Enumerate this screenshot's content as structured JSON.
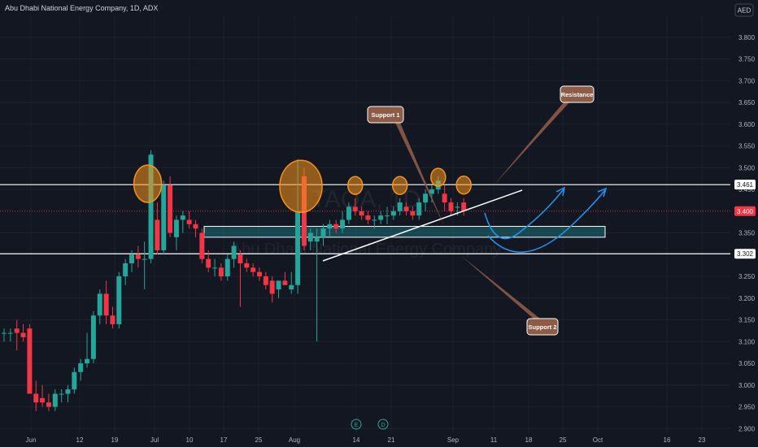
{
  "header": {
    "title": "Abu Dhabi National Energy Company, 1D, ADX",
    "currency": "AED"
  },
  "watermark": "TAQA, 1D",
  "watermark_sub": "Abu Dhabi National Energy Company",
  "colors": {
    "background": "#131722",
    "up": "#26a69a",
    "down": "#f23645",
    "highlight_orange": "#f7931a",
    "callout_brown": "#8d5b46",
    "zone_teal": "#1e6f7a",
    "arrow_blue": "#2196f3"
  },
  "chart_data": {
    "type": "candlestick",
    "title": "Abu Dhabi National Energy Company, 1D, ADX",
    "ylim": [
      2.9,
      3.9
    ],
    "y_ticks": [
      "3.800",
      "3.750",
      "3.700",
      "3.650",
      "3.600",
      "3.550",
      "3.500",
      "3.450",
      "3.350",
      "3.250",
      "3.200",
      "3.150",
      "3.100",
      "3.050",
      "3.000",
      "2.950",
      "2.900"
    ],
    "x_ticks": [
      "Jun",
      "12",
      "19",
      "Jul",
      "10",
      "17",
      "25",
      "Aug",
      "14",
      "21",
      "Sep",
      "11",
      "18",
      "25",
      "Oct",
      "16",
      "23"
    ],
    "price_labels": [
      {
        "value": "3.461",
        "style": "white"
      },
      {
        "value": "3.400",
        "style": "red"
      },
      {
        "value": "3.302",
        "style": "white"
      }
    ],
    "horizontal_lines": [
      3.461,
      3.302
    ],
    "last_price": 3.4,
    "support_zone": {
      "low": 3.34,
      "high": 3.365
    },
    "candles": [
      {
        "o": 3.12,
        "h": 3.13,
        "l": 3.1,
        "c": 3.12
      },
      {
        "o": 3.12,
        "h": 3.13,
        "l": 3.1,
        "c": 3.12
      },
      {
        "o": 3.13,
        "h": 3.15,
        "l": 3.08,
        "c": 3.12
      },
      {
        "o": 3.12,
        "h": 3.14,
        "l": 3.1,
        "c": 3.11
      },
      {
        "o": 3.13,
        "h": 3.14,
        "l": 2.98,
        "c": 2.98
      },
      {
        "o": 2.98,
        "h": 3.01,
        "l": 2.94,
        "c": 2.96
      },
      {
        "o": 2.97,
        "h": 3.0,
        "l": 2.95,
        "c": 2.96
      },
      {
        "o": 2.96,
        "h": 2.98,
        "l": 2.94,
        "c": 2.95
      },
      {
        "o": 2.95,
        "h": 2.99,
        "l": 2.94,
        "c": 2.98
      },
      {
        "o": 2.98,
        "h": 2.99,
        "l": 2.96,
        "c": 2.98
      },
      {
        "o": 2.98,
        "h": 3.0,
        "l": 2.96,
        "c": 2.99
      },
      {
        "o": 2.99,
        "h": 3.04,
        "l": 2.98,
        "c": 3.03
      },
      {
        "o": 3.03,
        "h": 3.06,
        "l": 3.01,
        "c": 3.05
      },
      {
        "o": 3.05,
        "h": 3.12,
        "l": 3.04,
        "c": 3.06
      },
      {
        "o": 3.06,
        "h": 3.17,
        "l": 3.05,
        "c": 3.16
      },
      {
        "o": 3.16,
        "h": 3.22,
        "l": 3.14,
        "c": 3.21
      },
      {
        "o": 3.21,
        "h": 3.24,
        "l": 3.14,
        "c": 3.16
      },
      {
        "o": 3.16,
        "h": 3.18,
        "l": 3.13,
        "c": 3.14
      },
      {
        "o": 3.14,
        "h": 3.26,
        "l": 3.13,
        "c": 3.25
      },
      {
        "o": 3.25,
        "h": 3.29,
        "l": 3.23,
        "c": 3.28
      },
      {
        "o": 3.28,
        "h": 3.31,
        "l": 3.26,
        "c": 3.3
      },
      {
        "o": 3.3,
        "h": 3.32,
        "l": 3.27,
        "c": 3.29
      },
      {
        "o": 3.29,
        "h": 3.33,
        "l": 3.22,
        "c": 3.29
      },
      {
        "o": 3.29,
        "h": 3.54,
        "l": 3.28,
        "c": 3.53
      },
      {
        "o": 3.38,
        "h": 3.42,
        "l": 3.3,
        "c": 3.31
      },
      {
        "o": 3.31,
        "h": 3.47,
        "l": 3.3,
        "c": 3.46
      },
      {
        "o": 3.46,
        "h": 3.48,
        "l": 3.34,
        "c": 3.35
      },
      {
        "o": 3.34,
        "h": 3.39,
        "l": 3.31,
        "c": 3.38
      },
      {
        "o": 3.38,
        "h": 3.4,
        "l": 3.35,
        "c": 3.39
      },
      {
        "o": 3.38,
        "h": 3.4,
        "l": 3.36,
        "c": 3.37
      },
      {
        "o": 3.37,
        "h": 3.38,
        "l": 3.34,
        "c": 3.36
      },
      {
        "o": 3.35,
        "h": 3.36,
        "l": 3.28,
        "c": 3.29
      },
      {
        "o": 3.29,
        "h": 3.31,
        "l": 3.26,
        "c": 3.27
      },
      {
        "o": 3.27,
        "h": 3.29,
        "l": 3.25,
        "c": 3.27
      },
      {
        "o": 3.27,
        "h": 3.28,
        "l": 3.24,
        "c": 3.25
      },
      {
        "o": 3.25,
        "h": 3.3,
        "l": 3.24,
        "c": 3.29
      },
      {
        "o": 3.29,
        "h": 3.33,
        "l": 3.27,
        "c": 3.32
      },
      {
        "o": 3.3,
        "h": 3.31,
        "l": 3.18,
        "c": 3.28
      },
      {
        "o": 3.28,
        "h": 3.29,
        "l": 3.26,
        "c": 3.27
      },
      {
        "o": 3.27,
        "h": 3.28,
        "l": 3.25,
        "c": 3.26
      },
      {
        "o": 3.26,
        "h": 3.27,
        "l": 3.24,
        "c": 3.25
      },
      {
        "o": 3.25,
        "h": 3.26,
        "l": 3.22,
        "c": 3.23
      },
      {
        "o": 3.24,
        "h": 3.25,
        "l": 3.19,
        "c": 3.21
      },
      {
        "o": 3.22,
        "h": 3.24,
        "l": 3.2,
        "c": 3.24
      },
      {
        "o": 3.24,
        "h": 3.26,
        "l": 3.23,
        "c": 3.23
      },
      {
        "o": 3.22,
        "h": 3.26,
        "l": 3.21,
        "c": 3.23
      },
      {
        "o": 3.23,
        "h": 3.52,
        "l": 3.21,
        "c": 3.4
      },
      {
        "o": 3.48,
        "h": 3.5,
        "l": 3.31,
        "c": 3.32
      },
      {
        "o": 3.33,
        "h": 3.36,
        "l": 3.31,
        "c": 3.35
      },
      {
        "o": 3.33,
        "h": 3.36,
        "l": 3.1,
        "c": 3.34
      },
      {
        "o": 3.34,
        "h": 3.37,
        "l": 3.32,
        "c": 3.36
      },
      {
        "o": 3.36,
        "h": 3.38,
        "l": 3.34,
        "c": 3.37
      },
      {
        "o": 3.37,
        "h": 3.38,
        "l": 3.35,
        "c": 3.36
      },
      {
        "o": 3.36,
        "h": 3.4,
        "l": 3.35,
        "c": 3.38
      },
      {
        "o": 3.38,
        "h": 3.42,
        "l": 3.37,
        "c": 3.41
      },
      {
        "o": 3.41,
        "h": 3.43,
        "l": 3.39,
        "c": 3.4
      },
      {
        "o": 3.4,
        "h": 3.41,
        "l": 3.38,
        "c": 3.39
      },
      {
        "o": 3.39,
        "h": 3.4,
        "l": 3.37,
        "c": 3.38
      },
      {
        "o": 3.38,
        "h": 3.39,
        "l": 3.36,
        "c": 3.38
      },
      {
        "o": 3.38,
        "h": 3.4,
        "l": 3.37,
        "c": 3.39
      },
      {
        "o": 3.39,
        "h": 3.41,
        "l": 3.37,
        "c": 3.39
      },
      {
        "o": 3.39,
        "h": 3.41,
        "l": 3.38,
        "c": 3.4
      },
      {
        "o": 3.4,
        "h": 3.43,
        "l": 3.39,
        "c": 3.42
      },
      {
        "o": 3.41,
        "h": 3.42,
        "l": 3.39,
        "c": 3.4
      },
      {
        "o": 3.4,
        "h": 3.41,
        "l": 3.38,
        "c": 3.39
      },
      {
        "o": 3.39,
        "h": 3.43,
        "l": 3.38,
        "c": 3.42
      },
      {
        "o": 3.42,
        "h": 3.45,
        "l": 3.4,
        "c": 3.44
      },
      {
        "o": 3.44,
        "h": 3.46,
        "l": 3.42,
        "c": 3.45
      },
      {
        "o": 3.45,
        "h": 3.48,
        "l": 3.44,
        "c": 3.47
      },
      {
        "o": 3.44,
        "h": 3.46,
        "l": 3.4,
        "c": 3.42
      },
      {
        "o": 3.42,
        "h": 3.43,
        "l": 3.39,
        "c": 3.4
      },
      {
        "o": 3.41,
        "h": 3.42,
        "l": 3.39,
        "c": 3.41
      },
      {
        "o": 3.42,
        "h": 3.43,
        "l": 3.39,
        "c": 3.4
      }
    ],
    "highlight_circles": [
      {
        "index": 22.5,
        "price": 3.463,
        "size": "medium"
      },
      {
        "index": 46.5,
        "price": 3.457,
        "size": "large"
      },
      {
        "index": 55,
        "price": 3.459,
        "size": "small"
      },
      {
        "index": 62,
        "price": 3.459,
        "size": "small"
      },
      {
        "index": 68,
        "price": 3.478,
        "size": "small"
      },
      {
        "index": 72,
        "price": 3.46,
        "size": "small"
      }
    ],
    "annotations": [
      {
        "text": "Support 1"
      },
      {
        "text": "Resistance"
      },
      {
        "text": "Support 2"
      }
    ],
    "event_badges": [
      "E",
      "D"
    ]
  }
}
